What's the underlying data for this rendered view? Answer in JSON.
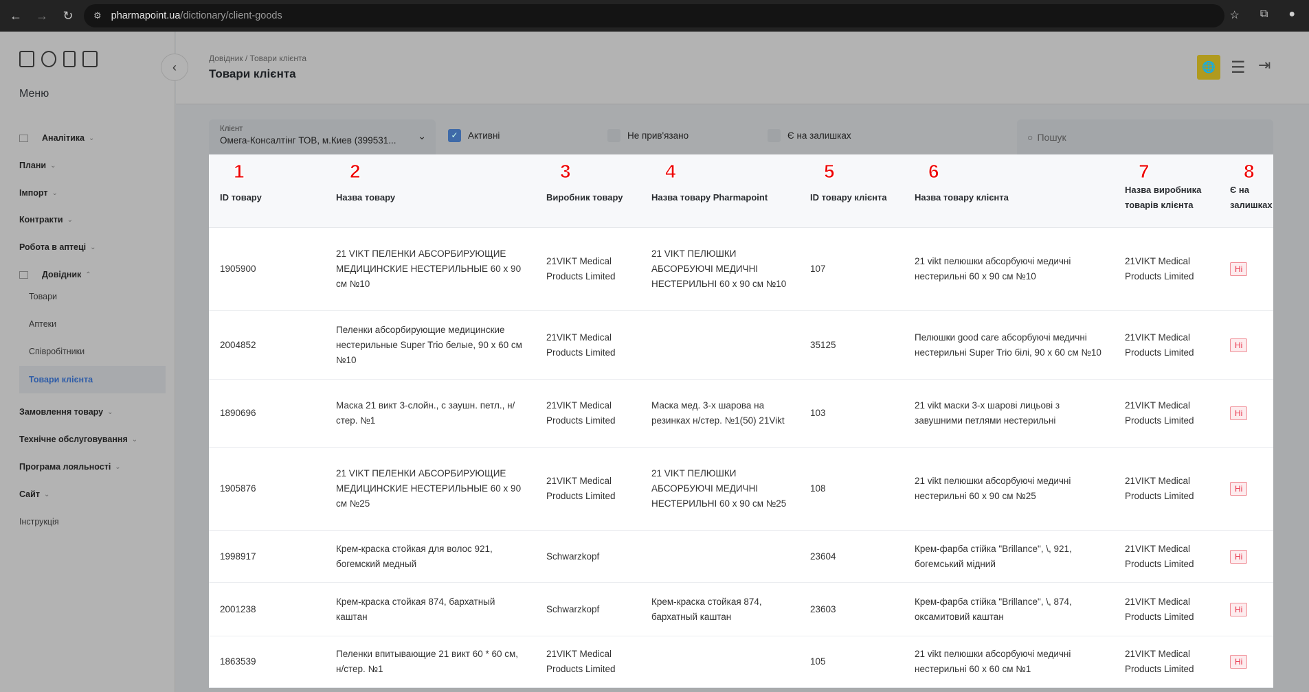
{
  "browser": {
    "host": "pharmapoint.ua",
    "path": "/dictionary/client-goods"
  },
  "sidebar": {
    "menu_title": "Меню",
    "items": [
      {
        "label": "Аналітика",
        "icon": "grid-icon",
        "expand": "down"
      },
      {
        "label": "Плани",
        "expand": "down"
      },
      {
        "label": "Імпорт",
        "expand": "down"
      },
      {
        "label": "Контракти",
        "expand": "down"
      },
      {
        "label": "Робота в аптеці",
        "expand": "down"
      },
      {
        "label": "Довідник",
        "icon": "list-icon",
        "expand": "up"
      },
      {
        "label": "Замовлення товару",
        "expand": "down"
      },
      {
        "label": "Технічне обслуговування",
        "expand": "down"
      },
      {
        "label": "Програма лояльності",
        "expand": "down"
      },
      {
        "label": "Сайт",
        "expand": "down"
      },
      {
        "label": "Інструкція"
      }
    ],
    "subitems": [
      {
        "label": "Товари"
      },
      {
        "label": "Аптеки"
      },
      {
        "label": "Співробітники"
      },
      {
        "label": "Товари клієнта",
        "active": true
      }
    ]
  },
  "header": {
    "breadcrumb": "Довідник / Товари клієнта",
    "title": "Товари клієнта"
  },
  "filters": {
    "client_label": "Клієнт",
    "client_value": "Омега-Консалтінг ТОВ, м.Киев (399531...",
    "active_label": "Активні",
    "active_checked": true,
    "unlinked_label": "Не прив'язано",
    "unlinked_checked": false,
    "stock_label": "Є на залишках",
    "stock_checked": false,
    "search_placeholder": "Пошук"
  },
  "colors": {
    "accent": "#3f6aa8",
    "globe_button": "#b09a1e",
    "badge_red": "#e8334a"
  },
  "table": {
    "annotations": [
      "1",
      "2",
      "3",
      "4",
      "5",
      "6",
      "7",
      "8"
    ],
    "columns": [
      "ID товару",
      "Назва товару",
      "Виробник товару",
      "Назва товару Pharmapoint",
      "ID товару клієнта",
      "Назва товару клієнта",
      "Назва виробника товарів клієнта",
      "Є на залишках"
    ],
    "rows": [
      [
        "1905900",
        "21 VIKT ПЕЛЕНКИ АБСОРБИРУЮЩИЕ МЕДИЦИНСКИЕ НЕСТЕРИЛЬНЫЕ 60 x 90 см №10",
        "21VIKT Medical Products Limited",
        "21 VIKT ПЕЛЮШКИ АБСОРБУЮЧІ МЕДИЧНІ НЕСТЕРИЛЬНІ 60 x 90 см №10",
        "107",
        "21 vikt пелюшки абсорбуючі медичні нестерильні 60 х 90 см №10",
        "21VIKT Medical Products Limited",
        "Ні"
      ],
      [
        "2004852",
        "Пеленки абсорбирующие медицинские нестерильные Super Trio белые, 90 x 60 см №10",
        "21VIKT Medical Products Limited",
        "",
        "35125",
        "Пелюшки good care абсорбуючі медичні нестерильні Super Trio білі, 90 х 60 см №10",
        "21VIKT Medical Products Limited",
        "Ні"
      ],
      [
        "1890696",
        "Маска 21 викт 3-слойн., с заушн. петл., н/стер. №1",
        "21VIKT Medical Products Limited",
        "Маска мед. 3-х шарова на резинках н/стер. №1(50) 21Vikt",
        "103",
        "21 vikt маски 3-х шарові лицьові з завушними петлями нестерильні",
        "21VIKT Medical Products Limited",
        "Ні"
      ],
      [
        "1905876",
        "21 VIKT ПЕЛЕНКИ АБСОРБИРУЮЩИЕ МЕДИЦИНСКИЕ НЕСТЕРИЛЬНЫЕ 60 x 90 см №25",
        "21VIKT Medical Products Limited",
        "21 VIKT ПЕЛЮШКИ АБСОРБУЮЧІ МЕДИЧНІ НЕСТЕРИЛЬНІ 60 x 90 см №25",
        "108",
        "21 vikt пелюшки абсорбуючі медичні нестерильні 60 х 90 см №25",
        "21VIKT Medical Products Limited",
        "Ні"
      ],
      [
        "1998917",
        "Крем-краска стойкая для волос 921, богемский медный",
        "Schwarzkopf",
        "",
        "23604",
        "Крем-фарба стійка \"Brillance\", \\, 921, богемський мідний",
        "21VIKT Medical Products Limited",
        "Ні"
      ],
      [
        "2001238",
        "Крем-краска стойкая 874, бархатный каштан",
        "Schwarzkopf",
        "Крем-краска стойкая 874, бархатный каштан",
        "23603",
        "Крем-фарба стійка \"Brillance\", \\, 874, оксамитовий каштан",
        "21VIKT Medical Products Limited",
        "Ні"
      ],
      [
        "1863539",
        "Пеленки впитывающие 21 викт 60 * 60 см, н/стер. №1",
        "21VIKT Medical Products Limited",
        "",
        "105",
        "21 vikt пелюшки абсорбуючі медичні нестерильні 60 х 60 см №1",
        "21VIKT Medical Products Limited",
        "Ні"
      ]
    ]
  }
}
